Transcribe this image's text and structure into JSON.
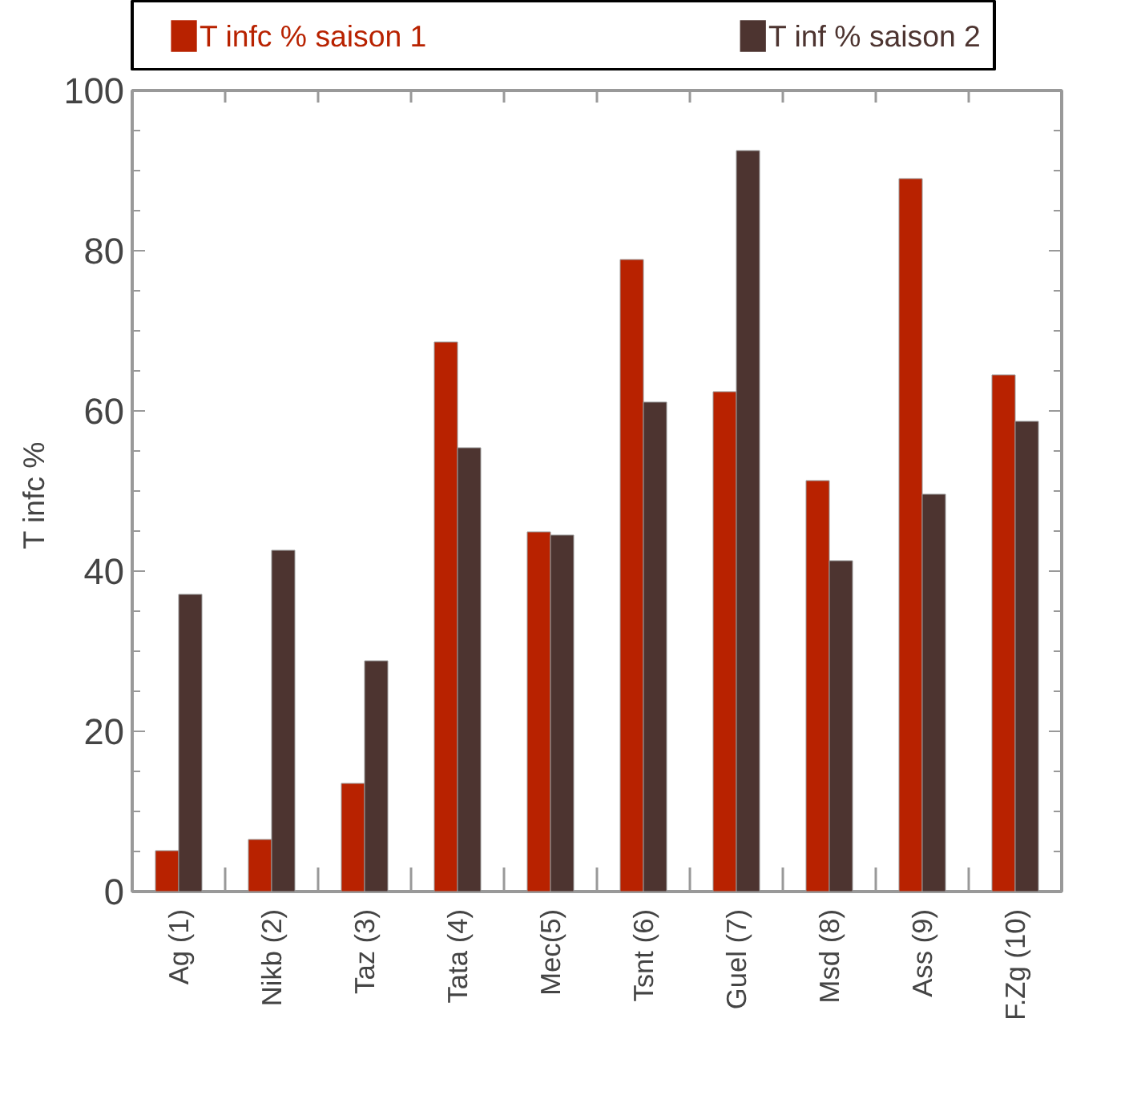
{
  "chart_data": {
    "type": "bar",
    "ylabel": "T infc  %",
    "categories": [
      "Ag (1)",
      "Nikb (2)",
      "Taz (3)",
      "Tata (4)",
      "Mec(5)",
      "Tsnt (6)",
      "Guel (7)",
      "Msd (8)",
      "Ass (9)",
      "F.Zg (10)"
    ],
    "series": [
      {
        "name": "T infc % saison 1",
        "color": "#b82200",
        "values": [
          5.1,
          6.5,
          13.5,
          68.6,
          44.9,
          78.9,
          62.4,
          51.3,
          89.0,
          64.5
        ]
      },
      {
        "name": "T inf % saison 2",
        "color": "#4d3430",
        "values": [
          37.1,
          42.6,
          28.8,
          55.4,
          44.5,
          61.1,
          92.5,
          41.3,
          49.6,
          58.7
        ]
      }
    ],
    "ylim": [
      0,
      100
    ],
    "yticks": [
      0,
      20,
      40,
      60,
      80,
      100
    ],
    "grid": false,
    "legend": "top"
  }
}
